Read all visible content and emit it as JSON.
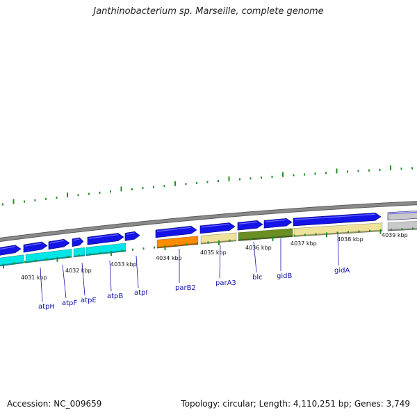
{
  "title": "Janthinobacterium sp. Marseille, complete genome",
  "footer": {
    "accession": "Accession: NC_009659",
    "summary": "Topology: circular; Length: 4,110,251 bp; Genes: 3,749"
  },
  "colors": {
    "backbone": "#8a8a8a",
    "forward_gene": "#1414e6",
    "tick": "#1f8f1f",
    "label": "#1010a8"
  },
  "kbp_ticks": [
    {
      "label": "4031 kbp",
      "kbp": 4031
    },
    {
      "label": "4032 kbp",
      "kbp": 4032
    },
    {
      "label": "4033 kbp",
      "kbp": 4033
    },
    {
      "label": "4034 kbp",
      "kbp": 4034
    },
    {
      "label": "4035 kbp",
      "kbp": 4035
    },
    {
      "label": "4036 kbp",
      "kbp": 4036
    },
    {
      "label": "4037 kbp",
      "kbp": 4037
    },
    {
      "label": "4038 kbp",
      "kbp": 4038
    },
    {
      "label": "4039 kbp",
      "kbp": 4039
    }
  ],
  "genes": [
    {
      "name": "atpH",
      "color": "#00e5e5"
    },
    {
      "name": "atpF",
      "color": "#00e5e5"
    },
    {
      "name": "atpE",
      "color": "#00e5e5"
    },
    {
      "name": "atpB",
      "color": "#00e5e5"
    },
    {
      "name": "atpI",
      "color": ""
    },
    {
      "name": "parB2",
      "color": "#ff8c00"
    },
    {
      "name": "parA3",
      "color": "#efe39c"
    },
    {
      "name": "blc",
      "color": "#6b8e23"
    },
    {
      "name": "gidB",
      "color": "#efe39c"
    },
    {
      "name": "gidA",
      "color": "#efe39c"
    }
  ]
}
